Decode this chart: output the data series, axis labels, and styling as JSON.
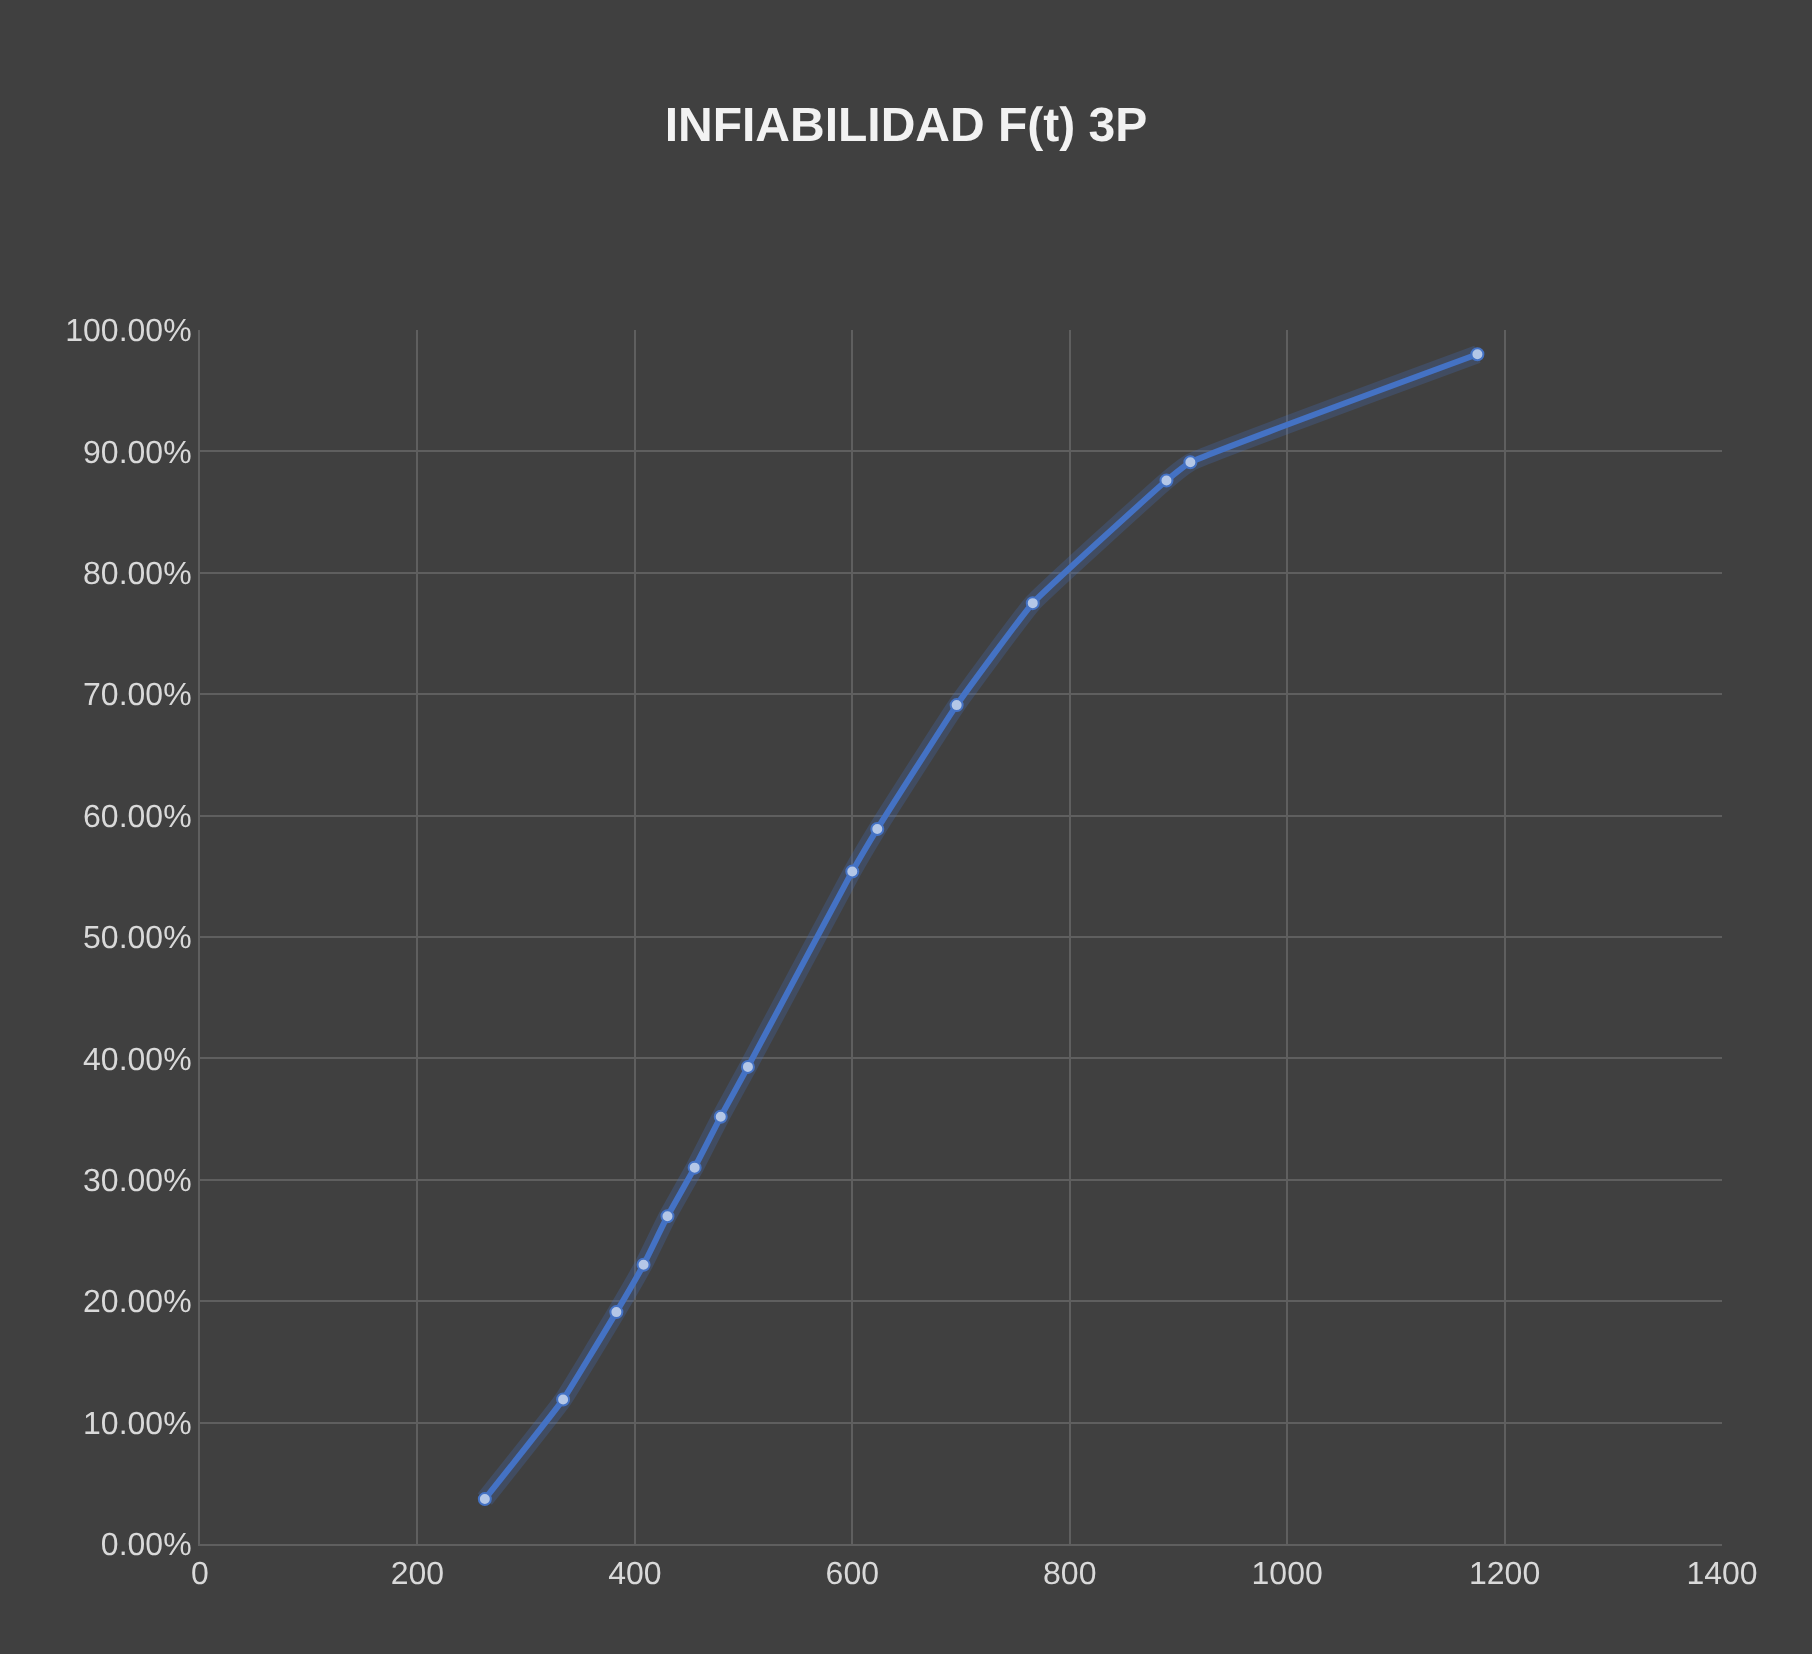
{
  "chart_data": {
    "type": "line",
    "title": "INFIABILIDAD F(t) 3P",
    "x": [
      262,
      334,
      383,
      408,
      430,
      455,
      479,
      504,
      600,
      623,
      696,
      766,
      889,
      911,
      1175
    ],
    "series": [
      {
        "color": "#4472c4",
        "values": [
          3.7,
          11.9,
          19.1,
          23.0,
          27.0,
          31.0,
          35.2,
          39.3,
          55.4,
          58.9,
          69.1,
          77.5,
          87.6,
          89.1,
          98.0
        ]
      }
    ],
    "xlim": [
      0,
      1400
    ],
    "xticks": [
      0,
      200,
      400,
      600,
      800,
      1000,
      1200,
      1400
    ],
    "ylim": [
      0,
      100
    ],
    "yticks": [
      {
        "value": 0,
        "label": "0.00%"
      },
      {
        "value": 10,
        "label": "10.00%"
      },
      {
        "value": 20,
        "label": "20.00%"
      },
      {
        "value": 30,
        "label": "30.00%"
      },
      {
        "value": 40,
        "label": "40.00%"
      },
      {
        "value": 50,
        "label": "50.00%"
      },
      {
        "value": 60,
        "label": "60.00%"
      },
      {
        "value": 70,
        "label": "70.00%"
      },
      {
        "value": 80,
        "label": "80.00%"
      },
      {
        "value": 90,
        "label": "90.00%"
      },
      {
        "value": 100,
        "label": "100.00%"
      }
    ],
    "grid": true,
    "marker": "circle",
    "line_style": "solid"
  }
}
